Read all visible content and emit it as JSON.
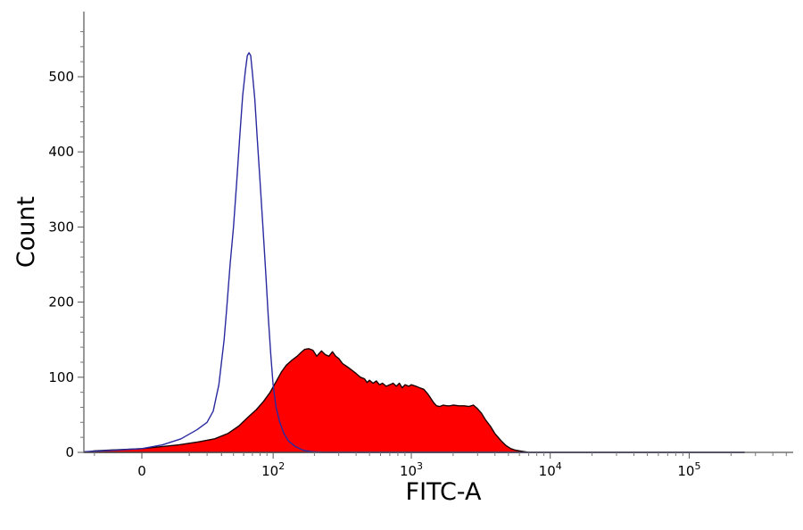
{
  "chart_data": {
    "type": "area",
    "xlabel": "FITC-A",
    "ylabel": "Count",
    "x_scale": "biexponential",
    "ylim": [
      0,
      580
    ],
    "y_ticks": [
      0,
      100,
      200,
      300,
      400,
      500
    ],
    "x_ticks": [
      {
        "value": 0,
        "base": "0",
        "exp": ""
      },
      {
        "value": 100,
        "base": "10",
        "exp": "2"
      },
      {
        "value": 1000,
        "base": "10",
        "exp": "3"
      },
      {
        "value": 10000,
        "base": "10",
        "exp": "4"
      },
      {
        "value": 100000,
        "base": "10",
        "exp": "5"
      }
    ],
    "grid": false,
    "legend": "none",
    "series": [
      {
        "style": "filled",
        "color": "#ff0000",
        "stroke": "#1a0000",
        "points": [
          [
            -55,
            0
          ],
          [
            -20,
            2
          ],
          [
            0,
            5
          ],
          [
            15,
            10
          ],
          [
            25,
            14
          ],
          [
            35,
            18
          ],
          [
            45,
            25
          ],
          [
            55,
            35
          ],
          [
            65,
            47
          ],
          [
            75,
            57
          ],
          [
            85,
            68
          ],
          [
            95,
            80
          ],
          [
            105,
            94
          ],
          [
            115,
            107
          ],
          [
            125,
            116
          ],
          [
            138,
            123
          ],
          [
            150,
            128
          ],
          [
            160,
            133
          ],
          [
            170,
            137
          ],
          [
            182,
            138
          ],
          [
            195,
            136
          ],
          [
            208,
            128
          ],
          [
            215,
            131
          ],
          [
            225,
            135
          ],
          [
            240,
            130
          ],
          [
            255,
            128
          ],
          [
            270,
            134
          ],
          [
            285,
            128
          ],
          [
            300,
            125
          ],
          [
            320,
            118
          ],
          [
            345,
            114
          ],
          [
            370,
            110
          ],
          [
            400,
            105
          ],
          [
            430,
            100
          ],
          [
            460,
            98
          ],
          [
            480,
            93
          ],
          [
            500,
            96
          ],
          [
            530,
            92
          ],
          [
            560,
            95
          ],
          [
            590,
            90
          ],
          [
            620,
            92
          ],
          [
            660,
            88
          ],
          [
            700,
            90
          ],
          [
            740,
            92
          ],
          [
            780,
            88
          ],
          [
            820,
            92
          ],
          [
            860,
            86
          ],
          [
            900,
            90
          ],
          [
            960,
            88
          ],
          [
            1000,
            90
          ],
          [
            1080,
            88
          ],
          [
            1150,
            86
          ],
          [
            1230,
            84
          ],
          [
            1310,
            78
          ],
          [
            1380,
            72
          ],
          [
            1450,
            66
          ],
          [
            1520,
            62
          ],
          [
            1600,
            61
          ],
          [
            1700,
            63
          ],
          [
            1800,
            62
          ],
          [
            1900,
            62
          ],
          [
            2000,
            63
          ],
          [
            2200,
            62
          ],
          [
            2400,
            62
          ],
          [
            2600,
            61
          ],
          [
            2800,
            63
          ],
          [
            3000,
            58
          ],
          [
            3200,
            52
          ],
          [
            3400,
            44
          ],
          [
            3700,
            35
          ],
          [
            4000,
            25
          ],
          [
            4400,
            16
          ],
          [
            4800,
            9
          ],
          [
            5200,
            5
          ],
          [
            5600,
            3
          ],
          [
            6000,
            2
          ],
          [
            6500,
            1
          ],
          [
            7000,
            0
          ],
          [
            250000,
            0
          ]
        ]
      },
      {
        "style": "outline",
        "color": "#2a2aa0",
        "points": [
          [
            -55,
            0
          ],
          [
            -25,
            1
          ],
          [
            -10,
            3
          ],
          [
            0,
            5
          ],
          [
            8,
            10
          ],
          [
            16,
            18
          ],
          [
            24,
            30
          ],
          [
            30,
            40
          ],
          [
            34,
            55
          ],
          [
            38,
            90
          ],
          [
            42,
            150
          ],
          [
            44,
            190
          ],
          [
            47,
            250
          ],
          [
            50,
            300
          ],
          [
            53,
            360
          ],
          [
            56,
            420
          ],
          [
            59,
            475
          ],
          [
            62,
            510
          ],
          [
            64,
            528
          ],
          [
            66,
            532
          ],
          [
            68,
            528
          ],
          [
            70,
            505
          ],
          [
            73,
            470
          ],
          [
            76,
            420
          ],
          [
            80,
            360
          ],
          [
            84,
            300
          ],
          [
            88,
            240
          ],
          [
            92,
            180
          ],
          [
            96,
            130
          ],
          [
            100,
            90
          ],
          [
            105,
            60
          ],
          [
            112,
            40
          ],
          [
            120,
            25
          ],
          [
            130,
            15
          ],
          [
            145,
            8
          ],
          [
            165,
            3
          ],
          [
            190,
            1
          ],
          [
            230,
            0
          ],
          [
            250000,
            0
          ]
        ]
      }
    ]
  }
}
